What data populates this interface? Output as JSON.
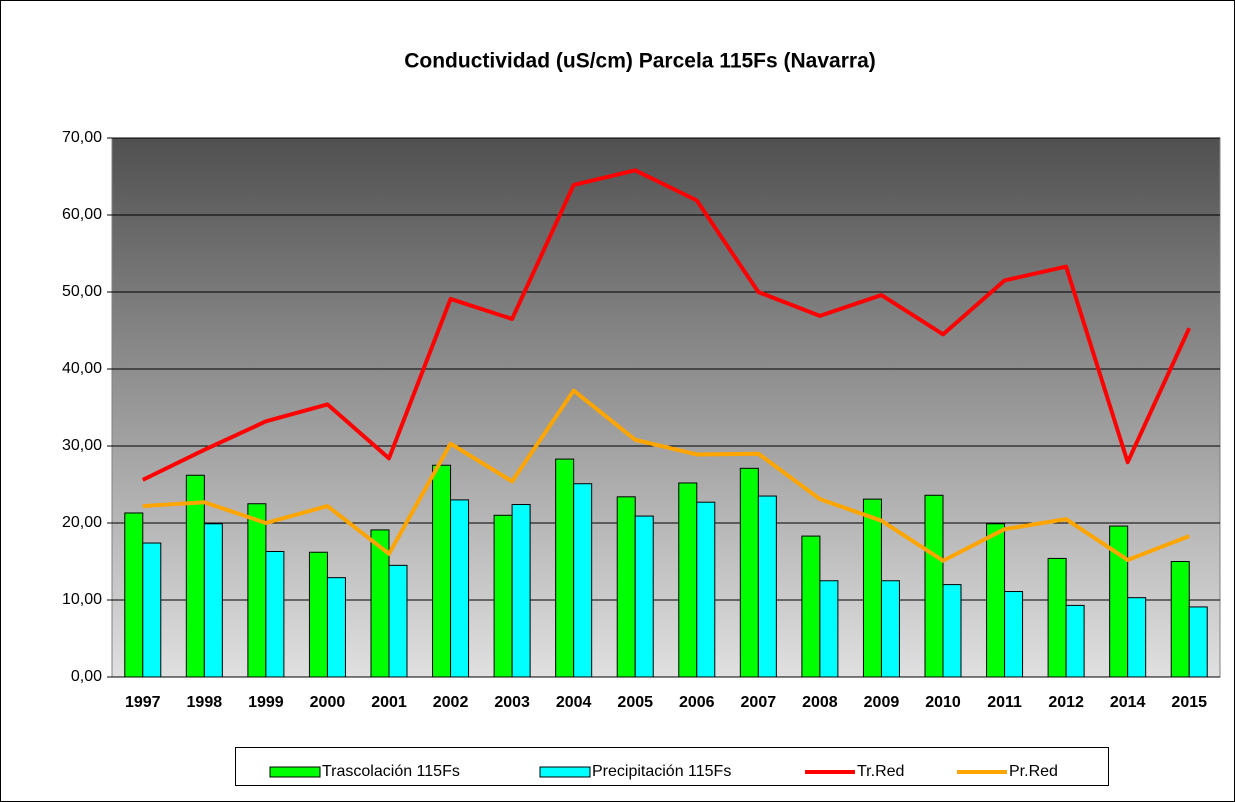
{
  "chart_data": {
    "type": "bar",
    "title": "Conductividad (uS/cm) Parcela 115Fs (Navarra)",
    "categories": [
      "1997",
      "1998",
      "1999",
      "2000",
      "2001",
      "2002",
      "2003",
      "2004",
      "2005",
      "2006",
      "2007",
      "2008",
      "2009",
      "2010",
      "2011",
      "2012",
      "2014",
      "2015"
    ],
    "series": [
      {
        "name": "Trascolación  115Fs",
        "type": "bar",
        "color": "#00ff00",
        "values": [
          21.3,
          26.2,
          22.5,
          16.2,
          19.1,
          27.5,
          21.0,
          28.3,
          23.4,
          25.2,
          27.1,
          18.3,
          23.1,
          23.6,
          19.9,
          15.4,
          19.6,
          15.0
        ]
      },
      {
        "name": "Precipitación 115Fs",
        "type": "bar",
        "color": "#00ffff",
        "values": [
          17.4,
          19.9,
          16.3,
          12.9,
          14.5,
          23.0,
          22.4,
          25.1,
          20.9,
          22.7,
          23.5,
          12.5,
          12.5,
          12.0,
          11.1,
          9.3,
          10.3,
          9.1
        ]
      },
      {
        "name": "Tr.Red",
        "type": "line",
        "color": "#ff0000",
        "values": [
          25.6,
          29.5,
          33.2,
          35.4,
          28.4,
          49.1,
          46.5,
          63.9,
          65.8,
          61.9,
          50.0,
          46.9,
          49.6,
          44.5,
          51.5,
          53.3,
          27.9,
          45.3
        ]
      },
      {
        "name": "Pr.Red",
        "type": "line",
        "color": "#ffa500",
        "values": [
          22.2,
          22.7,
          20.0,
          22.2,
          16.0,
          30.3,
          25.4,
          37.2,
          30.8,
          28.9,
          29.0,
          23.1,
          20.3,
          15.1,
          19.2,
          20.5,
          15.2,
          18.3
        ]
      }
    ],
    "ylim": [
      0,
      70
    ],
    "yticks": [
      {
        "value": 0,
        "label": "0,00"
      },
      {
        "value": 10,
        "label": "10,00"
      },
      {
        "value": 20,
        "label": "20,00"
      },
      {
        "value": 30,
        "label": "30,00"
      },
      {
        "value": 40,
        "label": "40,00"
      },
      {
        "value": 50,
        "label": "50,00"
      },
      {
        "value": 60,
        "label": "60,00"
      },
      {
        "value": 70,
        "label": "70,00"
      }
    ],
    "grid": true,
    "legend": "bottom"
  }
}
